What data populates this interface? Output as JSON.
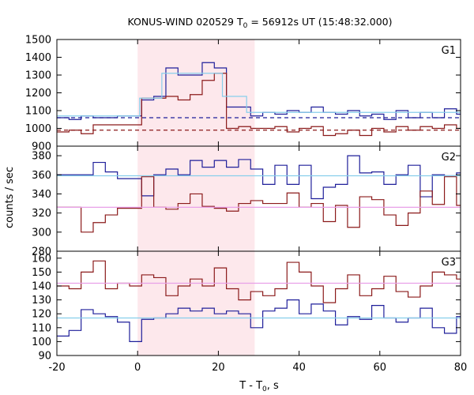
{
  "chart_data": {
    "type": "line",
    "title_main": "KONUS-WIND 020529 T",
    "title_sub": "0",
    "title_rest": " = 56912s UT (15:48:32.000)",
    "xlabel_main": "T - T",
    "xlabel_sub": "0",
    "xlabel_rest": ", s",
    "ylabel": "counts / sec",
    "xlim": [
      -20,
      80
    ],
    "xticks": [
      -20,
      0,
      20,
      40,
      60,
      80
    ],
    "shaded_interval": [
      0,
      29
    ],
    "shade_color": "#fde8ec",
    "colors": {
      "blue": "#1f1f9a",
      "red": "#8b1a1a",
      "lightblue": "#87ceeb",
      "pink": "#e8a0e8"
    },
    "panels": [
      {
        "label": "G1",
        "ylim": [
          900,
          1500
        ],
        "yticks": [
          900,
          1000,
          1100,
          1200,
          1300,
          1400,
          1500
        ],
        "series": [
          {
            "x": [
              -20,
              -17,
              -14,
              -11,
              -8,
              -5,
              -2,
              1,
              4,
              7,
              10,
              13,
              16,
              19,
              22,
              25,
              28,
              31,
              34,
              37,
              40,
              43,
              46,
              49,
              52,
              55,
              58,
              61,
              64,
              67,
              70,
              73,
              76,
              79
            ],
            "values": [
              1060,
              1050,
              1070,
              1060,
              1060,
              1070,
              1070,
              1160,
              1180,
              1340,
              1300,
              1300,
              1370,
              1340,
              1120,
              1120,
              1070,
              1090,
              1080,
              1100,
              1090,
              1120,
              1090,
              1080,
              1100,
              1070,
              1080,
              1050,
              1100,
              1060,
              1090,
              1060,
              1110,
              1080
            ],
            "color": "#1f1f9a",
            "dash": false
          },
          {
            "x": [
              -20,
              -17,
              -14,
              -11,
              -8,
              -5,
              -2,
              1,
              4,
              7,
              10,
              13,
              16,
              19,
              22,
              25,
              28,
              31,
              34,
              37,
              40,
              43,
              46,
              49,
              52,
              55,
              58,
              61,
              64,
              67,
              70,
              73,
              76,
              79
            ],
            "values": [
              980,
              990,
              970,
              1020,
              1020,
              1020,
              1020,
              1170,
              1170,
              1180,
              1160,
              1190,
              1270,
              1310,
              1000,
              1010,
              1000,
              1000,
              1010,
              980,
              1000,
              1010,
              960,
              970,
              990,
              960,
              1000,
              980,
              1010,
              990,
              1010,
              1000,
              1020,
              1000
            ],
            "color": "#8b1a1a",
            "dash": false
          },
          {
            "x": [
              -20,
              0,
              0.5,
              6,
              21,
              27,
              80
            ],
            "values": [
              1070,
              1070,
              1170,
              1310,
              1180,
              1090,
              1090
            ],
            "color": "#87ceeb",
            "dash": false
          },
          {
            "x": [
              -20,
              80
            ],
            "values": [
              1060,
              1060
            ],
            "color": "#1f1f9a",
            "dash": true
          },
          {
            "x": [
              -20,
              80
            ],
            "values": [
              990,
              990
            ],
            "color": "#8b1a1a",
            "dash": true
          }
        ]
      },
      {
        "label": "G2",
        "ylim": [
          280,
          390
        ],
        "yticks": [
          280,
          300,
          320,
          340,
          360,
          380
        ],
        "series": [
          {
            "x": [
              -20,
              -17,
              -14,
              -11,
              -8,
              -5,
              -2,
              1,
              4,
              7,
              10,
              13,
              16,
              19,
              22,
              25,
              28,
              31,
              34,
              37,
              40,
              43,
              46,
              49,
              52,
              55,
              58,
              61,
              64,
              67,
              70,
              73,
              76,
              79
            ],
            "values": [
              360,
              360,
              360,
              373,
              363,
              356,
              356,
              338,
              360,
              366,
              360,
              375,
              368,
              375,
              368,
              376,
              366,
              350,
              370,
              350,
              370,
              335,
              347,
              350,
              380,
              362,
              363,
              350,
              360,
              370,
              337,
              360,
              359,
              362
            ],
            "color": "#1f1f9a",
            "dash": false
          },
          {
            "x": [
              -20,
              -17,
              -14,
              -11,
              -8,
              -5,
              -2,
              1,
              4,
              7,
              10,
              13,
              16,
              19,
              22,
              25,
              28,
              31,
              34,
              37,
              40,
              43,
              46,
              49,
              52,
              55,
              58,
              61,
              64,
              67,
              70,
              73,
              76,
              79
            ],
            "values": [
              326,
              326,
              300,
              310,
              318,
              325,
              325,
              358,
              326,
              324,
              330,
              340,
              327,
              325,
              322,
              330,
              333,
              330,
              330,
              341,
              326,
              330,
              311,
              328,
              305,
              337,
              334,
              318,
              307,
              320,
              343,
              329,
              358,
              328
            ],
            "color": "#8b1a1a",
            "dash": false
          },
          {
            "x": [
              -20,
              80
            ],
            "values": [
              359,
              359
            ],
            "color": "#87ceeb",
            "dash": false
          },
          {
            "x": [
              -20,
              80
            ],
            "values": [
              326,
              326
            ],
            "color": "#e8a0e8",
            "dash": false
          }
        ]
      },
      {
        "label": "G3",
        "ylim": [
          90,
          165
        ],
        "yticks": [
          90,
          100,
          110,
          120,
          130,
          140,
          150,
          160
        ],
        "series": [
          {
            "x": [
              -20,
              -17,
              -14,
              -11,
              -8,
              -5,
              -2,
              1,
              4,
              7,
              10,
              13,
              16,
              19,
              22,
              25,
              28,
              31,
              34,
              37,
              40,
              43,
              46,
              49,
              52,
              55,
              58,
              61,
              64,
              67,
              70,
              73,
              76,
              79
            ],
            "values": [
              104,
              108,
              123,
              120,
              118,
              114,
              100,
              116,
              117,
              120,
              124,
              122,
              124,
              120,
              122,
              120,
              110,
              122,
              124,
              130,
              120,
              127,
              122,
              112,
              118,
              116,
              126,
              117,
              114,
              117,
              124,
              110,
              106,
              118
            ],
            "color": "#1f1f9a",
            "dash": false
          },
          {
            "x": [
              -20,
              -17,
              -14,
              -11,
              -8,
              -5,
              -2,
              1,
              4,
              7,
              10,
              13,
              16,
              19,
              22,
              25,
              28,
              31,
              34,
              37,
              40,
              43,
              46,
              49,
              52,
              55,
              58,
              61,
              64,
              67,
              70,
              73,
              76,
              79
            ],
            "values": [
              140,
              138,
              150,
              158,
              138,
              142,
              140,
              148,
              146,
              133,
              140,
              145,
              140,
              153,
              138,
              130,
              136,
              133,
              138,
              157,
              150,
              140,
              128,
              138,
              148,
              133,
              138,
              147,
              136,
              132,
              140,
              150,
              148,
              145
            ],
            "color": "#8b1a1a",
            "dash": false
          },
          {
            "x": [
              -20,
              80
            ],
            "values": [
              142,
              142
            ],
            "color": "#e8a0e8",
            "dash": false
          },
          {
            "x": [
              -20,
              80
            ],
            "values": [
              117,
              117
            ],
            "color": "#87ceeb",
            "dash": false
          }
        ]
      }
    ]
  }
}
